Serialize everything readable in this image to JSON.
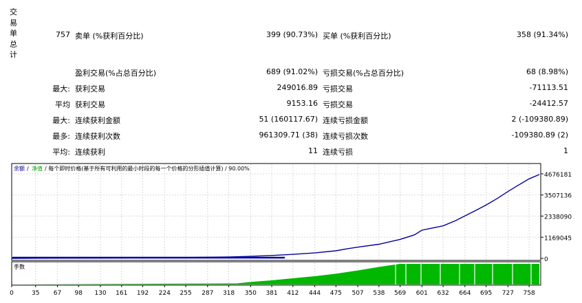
{
  "summary": {
    "vertical_label": [
      "交",
      "易",
      "单",
      "总",
      "计"
    ],
    "total_trades": "757",
    "short_label": "卖单 (%获利百分比)",
    "short_value": "399 (90.73%)",
    "long_label": "买单 (%获利百分比)",
    "long_value": "358 (91.34%)",
    "profit_trades_label": "盈利交易(%占总百分比)",
    "profit_trades_value": "689 (91.02%)",
    "loss_trades_label": "亏损交易(%占总百分比)",
    "loss_trades_value": "68 (8.98%)",
    "rows": [
      {
        "prefix": "最大:",
        "left_label": "获利交易",
        "left_value": "249016.89",
        "right_label": "亏损交易",
        "right_value": "-71113.51"
      },
      {
        "prefix": "平均",
        "left_label": "获利交易",
        "left_value": "9153.16",
        "right_label": "亏损交易",
        "right_value": "-24412.57"
      },
      {
        "prefix": "最大:",
        "left_label": "连续获利金额",
        "left_value": "51 (160117.67)",
        "right_label": "连续亏损金额",
        "right_value": "2 (-109380.89)"
      },
      {
        "prefix": "最多:",
        "left_label": "连续获利次数",
        "left_value": "961309.71 (38)",
        "right_label": "连续亏损次数",
        "right_value": "-109380.89 (2)"
      },
      {
        "prefix": "平均:",
        "left_label": "连续获利",
        "left_value": "11",
        "right_label": "连续亏损",
        "right_value": "1"
      }
    ]
  },
  "chart": {
    "legend_balance": "余额",
    "legend_sep": "/",
    "legend_equity": "净值",
    "legend_desc": "/ 每个即时价格(基于所有可利用的最小时段的每一个价格的分形插值计算) / 90.00%",
    "lots_label": "手数",
    "colors": {
      "balance": "#00009c",
      "lots": "#00b800",
      "equity": "#00a000"
    }
  },
  "chart_data": {
    "type": "line",
    "y_ticks": [
      "4676181",
      "3507136",
      "2338090",
      "1169045",
      "0"
    ],
    "y_tick_values": [
      4676181,
      3507136,
      2338090,
      1169045,
      0
    ],
    "x_ticks": [
      "0",
      "35",
      "67",
      "98",
      "130",
      "161",
      "192",
      "224",
      "255",
      "287",
      "318",
      "350",
      "381",
      "412",
      "444",
      "475",
      "507",
      "538",
      "569",
      "601",
      "632",
      "664",
      "695",
      "727",
      "758"
    ],
    "x_tick_values": [
      0,
      35,
      67,
      98,
      130,
      161,
      192,
      224,
      255,
      287,
      318,
      350,
      381,
      412,
      444,
      475,
      507,
      538,
      569,
      601,
      632,
      664,
      695,
      727,
      758
    ],
    "ylim": [
      0,
      4676181
    ],
    "xlim": [
      0,
      773
    ],
    "series": [
      {
        "x": [
          0,
          60,
          130,
          200,
          260,
          320,
          350,
          381,
          412,
          444,
          475,
          490,
          507,
          538,
          569,
          590,
          601,
          632,
          650,
          664,
          680,
          695,
          710,
          727,
          740,
          758,
          773
        ],
        "values": [
          0,
          10000,
          20000,
          30000,
          50000,
          80000,
          110000,
          160000,
          220000,
          300000,
          420000,
          520000,
          620000,
          780000,
          1050000,
          1300000,
          1560000,
          1800000,
          2080000,
          2350000,
          2650000,
          2950000,
          3280000,
          3700000,
          4000000,
          4400000,
          4640000
        ]
      }
    ],
    "lots": {
      "x": [
        0,
        330,
        350,
        381,
        412,
        444,
        475,
        507,
        538,
        569,
        601,
        632,
        664,
        695,
        727,
        758,
        773
      ],
      "values": [
        0,
        0.05,
        0.12,
        0.2,
        0.3,
        0.4,
        0.52,
        0.68,
        0.85,
        1,
        1,
        1,
        1,
        1,
        1,
        1,
        1
      ]
    }
  }
}
